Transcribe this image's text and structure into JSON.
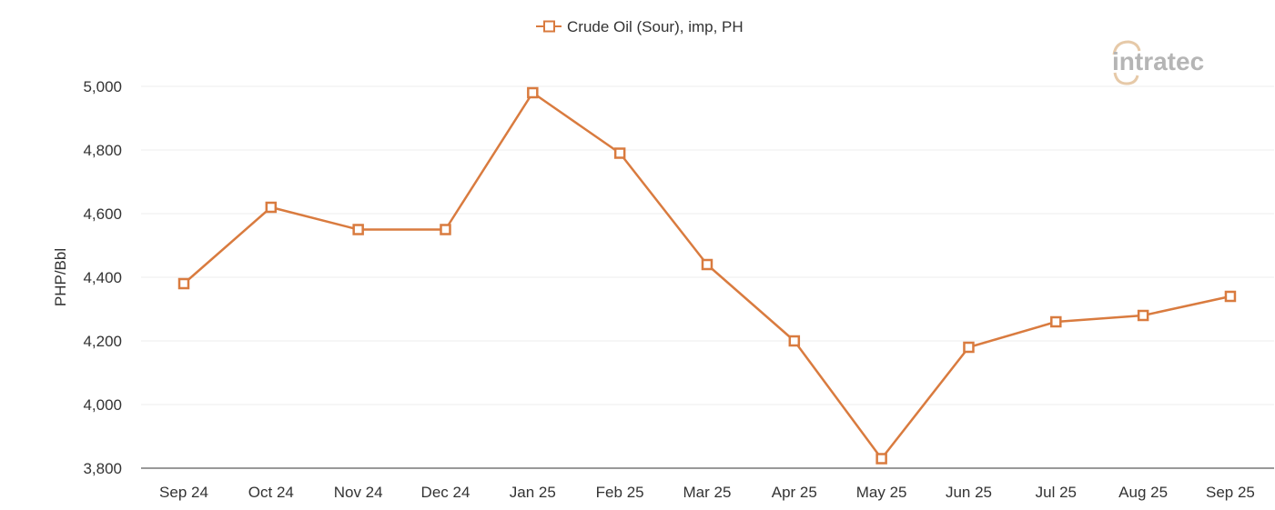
{
  "logo": {
    "text": "intratec",
    "color": "#b5b5b5",
    "accent_color": "#e6c9a8"
  },
  "chart_data": {
    "type": "line",
    "categories": [
      "Sep 24",
      "Oct 24",
      "Nov 24",
      "Dec 24",
      "Jan 25",
      "Feb 25",
      "Mar 25",
      "Apr 25",
      "May 25",
      "Jun 25",
      "Jul 25",
      "Aug 25",
      "Sep 25"
    ],
    "series": [
      {
        "name": "Crude Oil (Sour), imp, PH",
        "values": [
          4380,
          4620,
          4550,
          4550,
          4980,
          4790,
          4440,
          4200,
          3830,
          4180,
          4260,
          4280,
          4340
        ],
        "color": "#d97b3f",
        "marker": "open-square"
      }
    ],
    "ylabel": "PHP/Bbl",
    "ylim": [
      3800,
      5000
    ],
    "yticks": [
      3800,
      4000,
      4200,
      4400,
      4600,
      4800,
      5000
    ],
    "ytick_labels": [
      "3,800",
      "4,000",
      "4,200",
      "4,400",
      "4,600",
      "4,800",
      "5,000"
    ],
    "grid": true,
    "legend": "top-center"
  }
}
